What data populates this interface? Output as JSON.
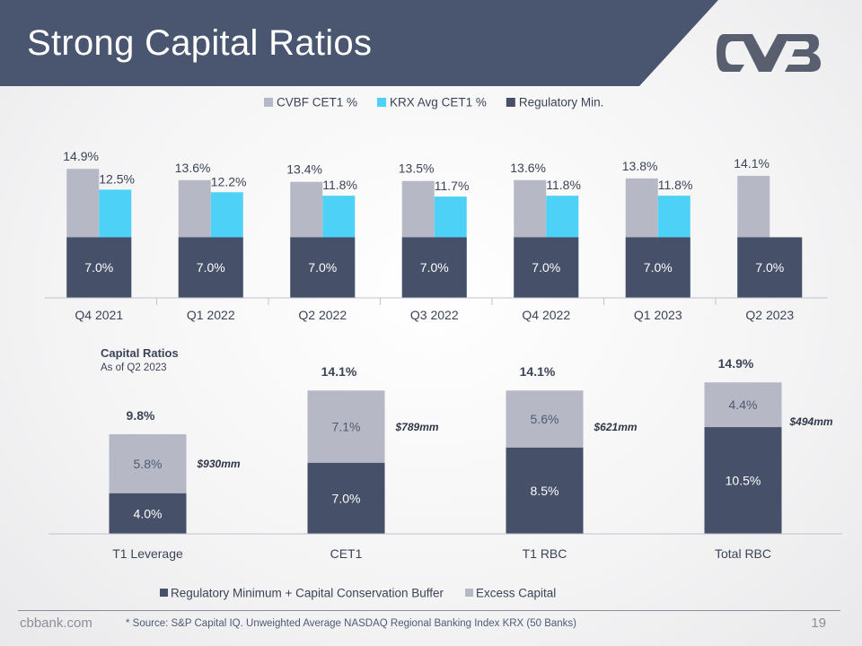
{
  "slide": {
    "title": "Strong Capital Ratios",
    "site": "cbbank.com",
    "footnote": "* Source: S&P Capital IQ. Unweighted Average NASDAQ Regional Banking Index KRX (50 Banks)",
    "page_number": "19",
    "colors": {
      "banner": "#4a5570",
      "navy": "#465069",
      "gray": "#b6b8c6",
      "cyan": "#4dd1f7"
    }
  },
  "chart_data": [
    {
      "type": "bar",
      "categories": [
        "Q4 2021",
        "Q1 2022",
        "Q2 2022",
        "Q3 2022",
        "Q4 2022",
        "Q1 2023",
        "Q2 2023"
      ],
      "series": [
        {
          "name": "CVBF CET1 %",
          "values": [
            14.9,
            13.6,
            13.4,
            13.5,
            13.6,
            13.8,
            14.1
          ],
          "labels": [
            "14.9%",
            "13.6%",
            "13.4%",
            "13.5%",
            "13.6%",
            "13.8%",
            "14.1%"
          ],
          "color": "#b6b8c6"
        },
        {
          "name": "KRX Avg CET1 %",
          "values": [
            12.5,
            12.2,
            11.8,
            11.7,
            11.8,
            11.8,
            null
          ],
          "labels": [
            "12.5%",
            "12.2%",
            "11.8%",
            "11.7%",
            "11.8%",
            "11.8%",
            ""
          ],
          "color": "#4dd1f7"
        },
        {
          "name": "Regulatory Min.",
          "values": [
            7.0,
            7.0,
            7.0,
            7.0,
            7.0,
            7.0,
            7.0
          ],
          "labels": [
            "7.0%",
            "7.0%",
            "7.0%",
            "7.0%",
            "7.0%",
            "7.0%",
            "7.0%"
          ],
          "color": "#465069"
        }
      ],
      "legend": "top",
      "grid": false
    },
    {
      "type": "bar",
      "stacked": true,
      "title": "Capital Ratios",
      "subtitle": "As of Q2 2023",
      "categories": [
        "T1 Leverage",
        "CET1",
        "T1 RBC",
        "Total RBC"
      ],
      "totals": [
        "9.8%",
        "14.1%",
        "14.1%",
        "14.9%"
      ],
      "annotations": [
        "$930mm",
        "$789mm",
        "$621mm",
        "$494mm"
      ],
      "series": [
        {
          "name": "Regulatory Minimum +  Capital Conservation Buffer",
          "values": [
            4.0,
            7.0,
            8.5,
            10.5
          ],
          "labels": [
            "4.0%",
            "7.0%",
            "8.5%",
            "10.5%"
          ],
          "color": "#465069"
        },
        {
          "name": "Excess Capital",
          "values": [
            5.8,
            7.1,
            5.6,
            4.4
          ],
          "labels": [
            "5.8%",
            "7.1%",
            "5.6%",
            "4.4%"
          ],
          "color": "#b6b8c6"
        }
      ],
      "legend": "bottom",
      "grid": false
    }
  ]
}
